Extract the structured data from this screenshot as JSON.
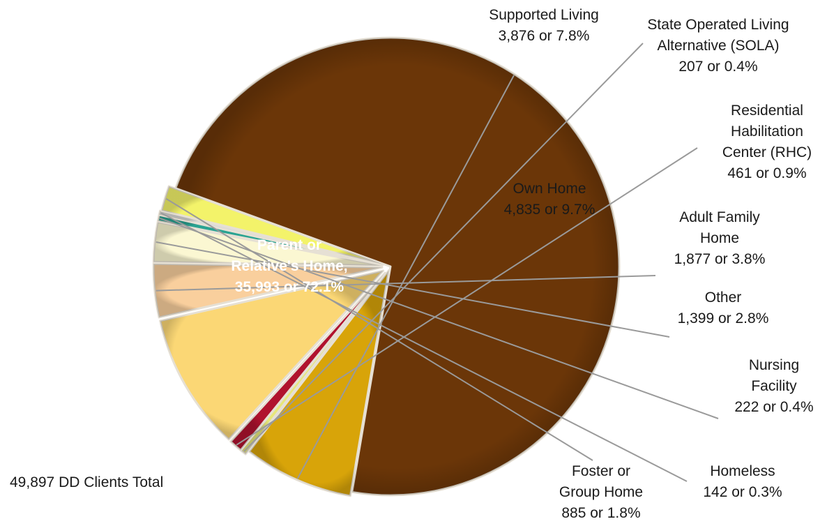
{
  "chart_data": {
    "type": "pie",
    "title": "",
    "total_label": "49,897 DD Clients Total",
    "slices": [
      {
        "name": "Parent or Relative's Home",
        "value": 35993,
        "percent": 72.1,
        "label_lines": [
          "Parent or",
          "Relative's Home,",
          "35,993 or 72.1%"
        ],
        "color": "#6b3608"
      },
      {
        "name": "Supported Living",
        "value": 3876,
        "percent": 7.8,
        "label_lines": [
          "Supported Living",
          "3,876 or 7.8%"
        ],
        "color": "#d8a409"
      },
      {
        "name": "State Operated Living Alternative (SOLA)",
        "value": 207,
        "percent": 0.4,
        "label_lines": [
          "State Operated Living",
          "Alternative (SOLA)",
          "207 or 0.4%"
        ],
        "color": "#e7e77a"
      },
      {
        "name": "Residential Habilitation Center (RHC)",
        "value": 461,
        "percent": 0.9,
        "label_lines": [
          "Residential",
          "Habilitation",
          "Center (RHC)",
          "461 or 0.9%"
        ],
        "color": "#b0122e"
      },
      {
        "name": "Own Home",
        "value": 4835,
        "percent": 9.7,
        "label_lines": [
          "Own Home",
          "4,835 or 9.7%"
        ],
        "color": "#fbd775"
      },
      {
        "name": "Adult Family Home",
        "value": 1877,
        "percent": 3.8,
        "label_lines": [
          "Adult Family",
          "Home",
          "1,877 or 3.8%"
        ],
        "color": "#f9cf9d"
      },
      {
        "name": "Other",
        "value": 1399,
        "percent": 2.8,
        "label_lines": [
          "Other",
          "1,399 or 2.8%"
        ],
        "color": "#fbf7d2"
      },
      {
        "name": "Nursing Facility",
        "value": 222,
        "percent": 0.4,
        "label_lines": [
          "Nursing",
          "Facility",
          "222 or 0.4%"
        ],
        "color": "#2aa392"
      },
      {
        "name": "Homeless",
        "value": 142,
        "percent": 0.3,
        "label_lines": [
          "Homeless",
          "142 or 0.3%"
        ],
        "color": "#d9d9d9"
      },
      {
        "name": "Foster or Group Home",
        "value": 885,
        "percent": 1.8,
        "label_lines": [
          "Foster or",
          "Group Home",
          "885 or 1.8%"
        ],
        "color": "#f3f36a"
      }
    ]
  }
}
